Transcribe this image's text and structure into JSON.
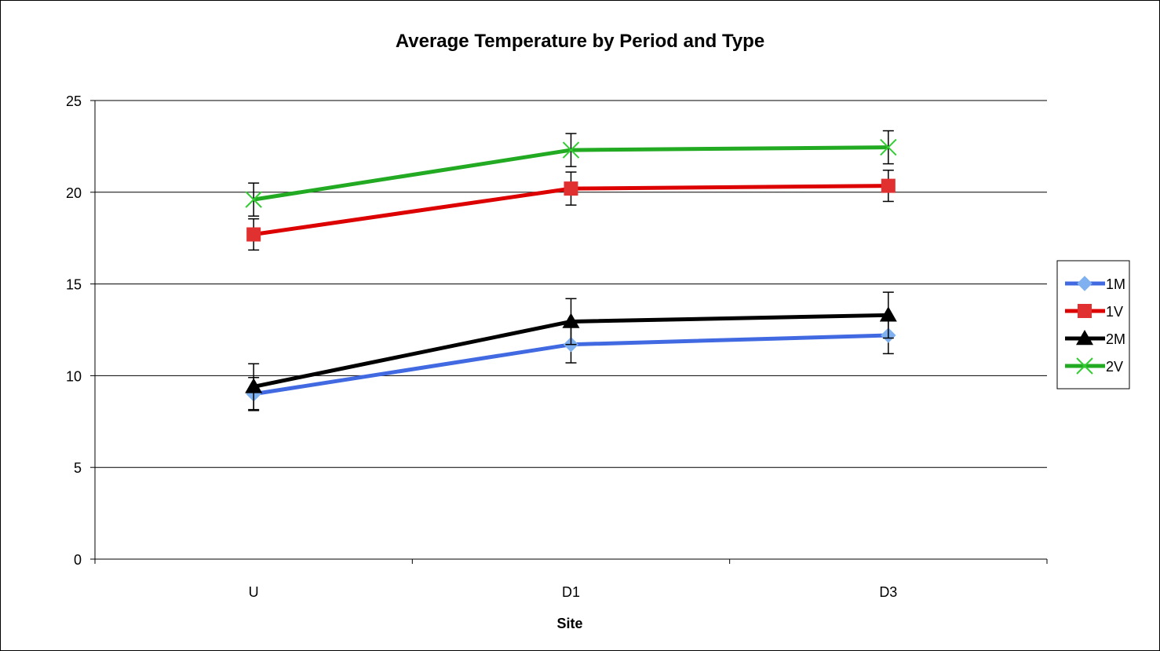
{
  "chart_data": {
    "type": "line",
    "title": "Average Temperature by Period and Type",
    "xlabel": "Site",
    "ylabel": "",
    "categories": [
      "U",
      "D1",
      "D3"
    ],
    "ylim": [
      0,
      25
    ],
    "yticks": [
      0,
      5,
      10,
      15,
      20,
      25
    ],
    "grid": "horizontal",
    "legend_position": "right",
    "error_bars": true,
    "series": [
      {
        "name": "1M",
        "values": [
          9.0,
          11.7,
          12.2
        ],
        "errors": [
          0.9,
          1.0,
          1.0
        ],
        "color": "#4169e1",
        "marker": "diamond",
        "marker_color": "#7fb0f0"
      },
      {
        "name": "1V",
        "values": [
          17.7,
          20.2,
          20.35
        ],
        "errors": [
          0.85,
          0.9,
          0.85
        ],
        "color": "#dd0000",
        "marker": "square",
        "marker_color": "#e03030"
      },
      {
        "name": "2M",
        "values": [
          9.4,
          12.95,
          13.3
        ],
        "errors": [
          1.25,
          1.25,
          1.25
        ],
        "color": "#000000",
        "marker": "triangle",
        "marker_color": "#000000"
      },
      {
        "name": "2V",
        "values": [
          19.6,
          22.3,
          22.45
        ],
        "errors": [
          0.9,
          0.9,
          0.9
        ],
        "color": "#22aa22",
        "marker": "x",
        "marker_color": "#33cc33"
      }
    ]
  }
}
